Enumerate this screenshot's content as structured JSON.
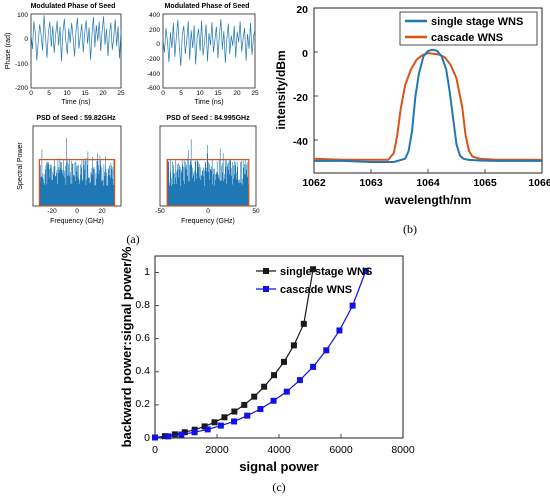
{
  "figure_labels": {
    "a": "(a)",
    "b": "(b)",
    "c": "(c)"
  },
  "colors": {
    "blue": "#1f77b4",
    "orange": "#d95319",
    "black": "#1a1a1a",
    "cascade": "#1010e8"
  },
  "chart_data": [
    {
      "id": "a1",
      "type": "line",
      "title": "Modulated Phase of Seed",
      "xlabel": "Time (ns)",
      "ylabel": "Phase (rad)",
      "xlim": [
        0,
        25
      ],
      "ylim": [
        -200,
        100
      ],
      "xticks": [
        "0",
        "5",
        "10",
        "15",
        "20",
        "25"
      ],
      "yticks": [
        "100",
        "0",
        "-100",
        "-200"
      ],
      "series": [
        {
          "values": [
            18,
            -42,
            70,
            22,
            -88,
            -12,
            58,
            12,
            -48,
            95,
            8,
            -78,
            28,
            68,
            -32,
            52,
            -58,
            18,
            72,
            -28,
            48,
            -92,
            28,
            80,
            -8,
            -62,
            42,
            -18,
            65,
            2,
            -72,
            32,
            85,
            -40,
            10,
            60,
            -55,
            25,
            75,
            -20,
            45,
            -85,
            15,
            88,
            -35,
            55,
            -10,
            70,
            -50,
            30,
            90,
            -25,
            40,
            -70,
            20,
            65,
            -45,
            5,
            78,
            -30,
            50,
            -80,
            35
          ]
        }
      ]
    },
    {
      "id": "a2",
      "type": "line",
      "title": "Modulated Phase of Seed",
      "xlabel": "Time (ns)",
      "ylabel": "",
      "xlim": [
        0,
        25
      ],
      "ylim": [
        -600,
        400
      ],
      "xticks": [
        "0",
        "5",
        "10",
        "15",
        "20",
        "25"
      ],
      "yticks": [
        "400",
        "200",
        "0",
        "-200",
        "-400",
        "-600"
      ],
      "series": [
        {
          "values": [
            60,
            -120,
            210,
            30,
            -250,
            150,
            -60,
            280,
            -180,
            90,
            320,
            -40,
            -300,
            120,
            240,
            -140,
            40,
            300,
            -220,
            180,
            -60,
            250,
            -280,
            80,
            200,
            -100,
            310,
            -160,
            20,
            260,
            -240,
            140,
            -20,
            290,
            -120,
            60,
            230,
            -200,
            100,
            330,
            -80,
            170,
            -260,
            50,
            270,
            -140,
            110,
            -30,
            240,
            -190,
            160,
            20,
            300,
            -110,
            70,
            210,
            -230,
            130,
            -70,
            280,
            -150,
            90,
            190
          ]
        }
      ]
    },
    {
      "id": "a3",
      "type": "bar",
      "title": "PSD of Seed : 59.82GHz",
      "xlabel": "Frequency (GHz)",
      "ylabel": "Spectral Power",
      "xlim": [
        -35,
        35
      ],
      "xticks": [
        "-20",
        "0",
        "20"
      ],
      "band": [
        -29.91,
        29.91
      ]
    },
    {
      "id": "a4",
      "type": "bar",
      "title": "PSD of Seed : 84.995GHz",
      "xlabel": "Frequency (GHz)",
      "ylabel": "",
      "xlim": [
        -50,
        50
      ],
      "xticks": [
        "-50",
        "0",
        "50"
      ],
      "band": [
        -42.5,
        42.5
      ]
    },
    {
      "id": "b",
      "type": "line",
      "xlabel": "wavelength/nm",
      "ylabel": "intensity/dBm",
      "xlim": [
        1062,
        1066
      ],
      "ylim": [
        -55,
        20
      ],
      "xticks": [
        1062,
        1063,
        1064,
        1065,
        1066
      ],
      "yticks": [
        20,
        0,
        -20,
        -40
      ],
      "legend_position": "top-right",
      "series": [
        {
          "name": "single stage WNS",
          "color": "#1f77b4",
          "x": [
            1062,
            1062.5,
            1063,
            1063.4,
            1063.6,
            1063.66,
            1063.72,
            1063.78,
            1063.84,
            1063.92,
            1064.0,
            1064.08,
            1064.16,
            1064.24,
            1064.32,
            1064.38,
            1064.44,
            1064.5,
            1064.56,
            1064.62,
            1064.7,
            1064.9,
            1065.2,
            1066
          ],
          "y": [
            -49.5,
            -49.5,
            -50,
            -50,
            -48.5,
            -45,
            -36,
            -20,
            -10,
            -2,
            0.5,
            1,
            0.5,
            -2,
            -8,
            -18,
            -30,
            -42,
            -47,
            -48.5,
            -49,
            -49.3,
            -49.5,
            -49.5
          ]
        },
        {
          "name": "cascade WNS",
          "color": "#d95319",
          "x": [
            1062,
            1062.5,
            1063,
            1063.3,
            1063.4,
            1063.46,
            1063.52,
            1063.6,
            1063.7,
            1063.8,
            1063.9,
            1064.0,
            1064.1,
            1064.2,
            1064.3,
            1064.4,
            1064.5,
            1064.6,
            1064.66,
            1064.72,
            1064.78,
            1064.9,
            1065.2,
            1066
          ],
          "y": [
            -48.5,
            -49,
            -49,
            -49,
            -46,
            -38,
            -26,
            -15,
            -8,
            -3.5,
            -1.5,
            -0.5,
            -0.8,
            -1.2,
            -2.5,
            -6,
            -12,
            -25,
            -38,
            -45,
            -47.5,
            -48.5,
            -49,
            -49
          ]
        }
      ]
    },
    {
      "id": "c",
      "type": "line",
      "xlabel": "signal power",
      "ylabel": "backward power:signal power/%",
      "xlim": [
        0,
        8000
      ],
      "ylim": [
        0,
        1.1
      ],
      "xticks": [
        0,
        2000,
        4000,
        6000,
        8000
      ],
      "yticks": [
        0,
        0.2,
        0.4,
        0.6,
        0.8,
        1
      ],
      "legend_position": "top-right",
      "series": [
        {
          "name": "single stage WNS",
          "color": "#1a1a1a",
          "marker": "square",
          "x": [
            0,
            320,
            640,
            960,
            1280,
            1600,
            1920,
            2240,
            2560,
            2880,
            3200,
            3520,
            3840,
            4160,
            4480,
            4800,
            5100
          ],
          "y": [
            0.003,
            0.011,
            0.022,
            0.035,
            0.05,
            0.07,
            0.095,
            0.125,
            0.16,
            0.2,
            0.25,
            0.31,
            0.38,
            0.46,
            0.56,
            0.69,
            1.02
          ]
        },
        {
          "name": "cascade WNS",
          "color": "#1010e8",
          "marker": "square",
          "x": [
            0,
            425,
            850,
            1275,
            1700,
            2125,
            2550,
            2975,
            3400,
            3825,
            4250,
            4675,
            5100,
            5525,
            5950,
            6375,
            6800
          ],
          "y": [
            0.003,
            0.01,
            0.021,
            0.035,
            0.052,
            0.075,
            0.1,
            0.135,
            0.175,
            0.225,
            0.28,
            0.35,
            0.43,
            0.53,
            0.65,
            0.8,
            1.01
          ]
        }
      ]
    }
  ]
}
